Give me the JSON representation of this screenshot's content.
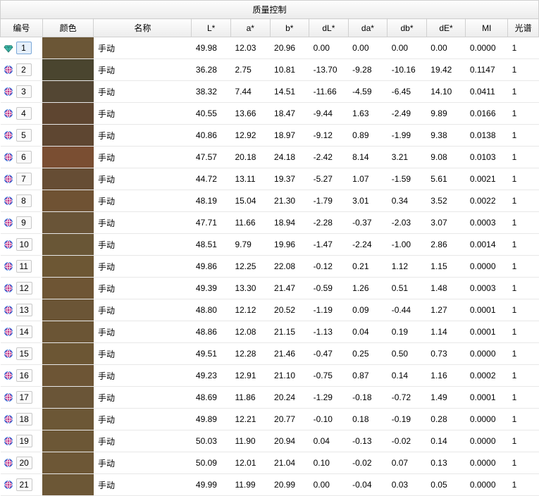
{
  "title": "质量控制",
  "columns": {
    "num": "编号",
    "color": "颜色",
    "name": "名称",
    "L": "L*",
    "a": "a*",
    "b": "b*",
    "dL": "dL*",
    "da": "da*",
    "db": "db*",
    "dE": "dE*",
    "MI": "MI",
    "sp": "光谱"
  },
  "icon_colors": {
    "standard": "#3db8a8",
    "sample_fill": "#c43a8a",
    "sample_ring": "#2b6bd8"
  },
  "selected_row": 1,
  "rows": [
    {
      "n": "1",
      "type": "standard",
      "color": "#6b5636",
      "name": "手动",
      "L": "49.98",
      "a": "12.03",
      "b": "20.96",
      "dL": "0.00",
      "da": "0.00",
      "db": "0.00",
      "dE": "0.00",
      "MI": "0.0000",
      "sp": "1"
    },
    {
      "n": "2",
      "type": "sample",
      "color": "#4a452f",
      "name": "手动",
      "L": "36.28",
      "a": "2.75",
      "b": "10.81",
      "dL": "-13.70",
      "da": "-9.28",
      "db": "-10.16",
      "dE": "19.42",
      "MI": "0.1147",
      "sp": "1"
    },
    {
      "n": "3",
      "type": "sample",
      "color": "#534633",
      "name": "手动",
      "L": "38.32",
      "a": "7.44",
      "b": "14.51",
      "dL": "-11.66",
      "da": "-4.59",
      "db": "-6.45",
      "dE": "14.10",
      "MI": "0.0411",
      "sp": "1"
    },
    {
      "n": "4",
      "type": "sample",
      "color": "#5e4530",
      "name": "手动",
      "L": "40.55",
      "a": "13.66",
      "b": "18.47",
      "dL": "-9.44",
      "da": "1.63",
      "db": "-2.49",
      "dE": "9.89",
      "MI": "0.0166",
      "sp": "1"
    },
    {
      "n": "5",
      "type": "sample",
      "color": "#5e4631",
      "name": "手动",
      "L": "40.86",
      "a": "12.92",
      "b": "18.97",
      "dL": "-9.12",
      "da": "0.89",
      "db": "-1.99",
      "dE": "9.38",
      "MI": "0.0138",
      "sp": "1"
    },
    {
      "n": "6",
      "type": "sample",
      "color": "#7a4e32",
      "name": "手动",
      "L": "47.57",
      "a": "20.18",
      "b": "24.18",
      "dL": "-2.42",
      "da": "8.14",
      "db": "3.21",
      "dE": "9.08",
      "MI": "0.0103",
      "sp": "1"
    },
    {
      "n": "7",
      "type": "sample",
      "color": "#664d34",
      "name": "手动",
      "L": "44.72",
      "a": "13.11",
      "b": "19.37",
      "dL": "-5.27",
      "da": "1.07",
      "db": "-1.59",
      "dE": "5.61",
      "MI": "0.0021",
      "sp": "1"
    },
    {
      "n": "8",
      "type": "sample",
      "color": "#6f5233",
      "name": "手动",
      "L": "48.19",
      "a": "15.04",
      "b": "21.30",
      "dL": "-1.79",
      "da": "3.01",
      "db": "0.34",
      "dE": "3.52",
      "MI": "0.0022",
      "sp": "1"
    },
    {
      "n": "9",
      "type": "sample",
      "color": "#695437",
      "name": "手动",
      "L": "47.71",
      "a": "11.66",
      "b": "18.94",
      "dL": "-2.28",
      "da": "-0.37",
      "db": "-2.03",
      "dE": "3.07",
      "MI": "0.0003",
      "sp": "1"
    },
    {
      "n": "10",
      "type": "sample",
      "color": "#695636",
      "name": "手动",
      "L": "48.51",
      "a": "9.79",
      "b": "19.96",
      "dL": "-1.47",
      "da": "-2.24",
      "db": "-1.00",
      "dE": "2.86",
      "MI": "0.0014",
      "sp": "1"
    },
    {
      "n": "11",
      "type": "sample",
      "color": "#6d5734",
      "name": "手动",
      "L": "49.86",
      "a": "12.25",
      "b": "22.08",
      "dL": "-0.12",
      "da": "0.21",
      "db": "1.12",
      "dE": "1.15",
      "MI": "0.0000",
      "sp": "1"
    },
    {
      "n": "12",
      "type": "sample",
      "color": "#6e5534",
      "name": "手动",
      "L": "49.39",
      "a": "13.30",
      "b": "21.47",
      "dL": "-0.59",
      "da": "1.26",
      "db": "0.51",
      "dE": "1.48",
      "MI": "0.0003",
      "sp": "1"
    },
    {
      "n": "13",
      "type": "sample",
      "color": "#6b5536",
      "name": "手动",
      "L": "48.80",
      "a": "12.12",
      "b": "20.52",
      "dL": "-1.19",
      "da": "0.09",
      "db": "-0.44",
      "dE": "1.27",
      "MI": "0.0001",
      "sp": "1"
    },
    {
      "n": "14",
      "type": "sample",
      "color": "#6b5535",
      "name": "手动",
      "L": "48.86",
      "a": "12.08",
      "b": "21.15",
      "dL": "-1.13",
      "da": "0.04",
      "db": "0.19",
      "dE": "1.14",
      "MI": "0.0001",
      "sp": "1"
    },
    {
      "n": "15",
      "type": "sample",
      "color": "#6c5634",
      "name": "手动",
      "L": "49.51",
      "a": "12.28",
      "b": "21.46",
      "dL": "-0.47",
      "da": "0.25",
      "db": "0.50",
      "dE": "0.73",
      "MI": "0.0000",
      "sp": "1"
    },
    {
      "n": "16",
      "type": "sample",
      "color": "#6d5535",
      "name": "手动",
      "L": "49.23",
      "a": "12.91",
      "b": "21.10",
      "dL": "-0.75",
      "da": "0.87",
      "db": "0.14",
      "dE": "1.16",
      "MI": "0.0002",
      "sp": "1"
    },
    {
      "n": "17",
      "type": "sample",
      "color": "#6a5537",
      "name": "手动",
      "L": "48.69",
      "a": "11.86",
      "b": "20.24",
      "dL": "-1.29",
      "da": "-0.18",
      "db": "-0.72",
      "dE": "1.49",
      "MI": "0.0001",
      "sp": "1"
    },
    {
      "n": "18",
      "type": "sample",
      "color": "#6c5736",
      "name": "手动",
      "L": "49.89",
      "a": "12.21",
      "b": "20.77",
      "dL": "-0.10",
      "da": "0.18",
      "db": "-0.19",
      "dE": "0.28",
      "MI": "0.0000",
      "sp": "1"
    },
    {
      "n": "19",
      "type": "sample",
      "color": "#6c5736",
      "name": "手动",
      "L": "50.03",
      "a": "11.90",
      "b": "20.94",
      "dL": "0.04",
      "da": "-0.13",
      "db": "-0.02",
      "dE": "0.14",
      "MI": "0.0000",
      "sp": "1"
    },
    {
      "n": "20",
      "type": "sample",
      "color": "#6d5736",
      "name": "手动",
      "L": "50.09",
      "a": "12.01",
      "b": "21.04",
      "dL": "0.10",
      "da": "-0.02",
      "db": "0.07",
      "dE": "0.13",
      "MI": "0.0000",
      "sp": "1"
    },
    {
      "n": "21",
      "type": "sample",
      "color": "#6c5736",
      "name": "手动",
      "L": "49.99",
      "a": "11.99",
      "b": "20.99",
      "dL": "0.00",
      "da": "-0.04",
      "db": "0.03",
      "dE": "0.05",
      "MI": "0.0000",
      "sp": "1"
    }
  ]
}
